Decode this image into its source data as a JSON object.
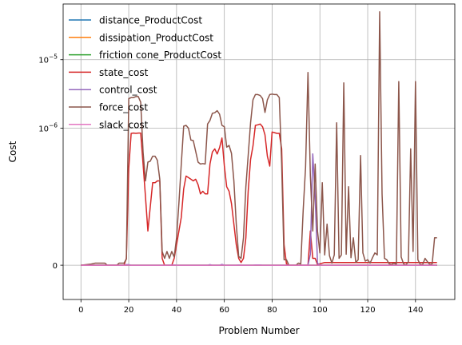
{
  "chart_data": {
    "type": "line",
    "xlabel": "Problem Number",
    "ylabel": "Cost",
    "xlim": [
      -7.45,
      156.45
    ],
    "xticks": [
      0,
      20,
      40,
      60,
      80,
      100,
      120,
      140
    ],
    "y_scale": "symlog",
    "y_linthresh": 1e-07,
    "ylim": [
      -5e-08,
      6.5e-05
    ],
    "yticks": [
      {
        "value": 0,
        "label": "0",
        "sup": ""
      },
      {
        "value": 1e-06,
        "label": "10",
        "sup": "−6"
      },
      {
        "value": 1e-05,
        "label": "10",
        "sup": "−5"
      }
    ],
    "grid": true,
    "legend_position": "top-left",
    "series": [
      {
        "name": "distance_ProductCost",
        "color": "#1f77b4",
        "y": [
          [
            0,
            0
          ],
          [
            149,
            0
          ]
        ]
      },
      {
        "name": "dissipation_ProductCost",
        "color": "#ff7f0e",
        "y": [
          [
            0,
            0
          ],
          [
            149,
            0
          ]
        ]
      },
      {
        "name": "friction cone_ProductCost",
        "color": "#2ca02c",
        "y": [
          [
            0,
            0
          ],
          [
            149,
            0
          ]
        ]
      },
      {
        "name": "state_cost",
        "color": "#d62728",
        "y": [
          [
            0,
            0
          ],
          [
            4,
            0
          ],
          [
            6,
            0
          ],
          [
            8,
            0
          ],
          [
            10,
            0
          ],
          [
            12,
            0
          ],
          [
            14,
            0
          ],
          [
            16,
            0
          ],
          [
            18,
            0
          ],
          [
            19,
            1e-08
          ],
          [
            20,
            2.6e-07
          ],
          [
            21,
            8.4e-07
          ],
          [
            22,
            8.5e-07
          ],
          [
            23,
            8.4e-07
          ],
          [
            24,
            8.5e-07
          ],
          [
            25,
            8.5e-07
          ],
          [
            26,
            3e-07
          ],
          [
            27,
            1e-07
          ],
          [
            28,
            5e-08
          ],
          [
            30,
            1.6e-07
          ],
          [
            31,
            1.6e-07
          ],
          [
            32,
            1.7e-07
          ],
          [
            33,
            1.7e-07
          ],
          [
            34,
            1e-08
          ],
          [
            35,
            0
          ],
          [
            38,
            0
          ],
          [
            39,
            1e-08
          ],
          [
            40,
            3e-08
          ],
          [
            42,
            7e-08
          ],
          [
            43,
            1.3e-07
          ],
          [
            44,
            2e-07
          ],
          [
            45,
            1.9e-07
          ],
          [
            46,
            1.8e-07
          ],
          [
            47,
            1.7e-07
          ],
          [
            48,
            1.8e-07
          ],
          [
            49,
            1.5e-07
          ],
          [
            50,
            1.1e-07
          ],
          [
            51,
            1.2e-07
          ],
          [
            52,
            1.1e-07
          ],
          [
            53,
            1.1e-07
          ],
          [
            54,
            3e-07
          ],
          [
            55,
            4.5e-07
          ],
          [
            56,
            5e-07
          ],
          [
            57,
            4.2e-07
          ],
          [
            58,
            5.2e-07
          ],
          [
            59,
            7.2e-07
          ],
          [
            60,
            2.8e-07
          ],
          [
            61,
            1.4e-07
          ],
          [
            62,
            1.2e-07
          ],
          [
            63,
            9e-08
          ],
          [
            64,
            6e-08
          ],
          [
            65,
            3e-08
          ],
          [
            66,
            1e-08
          ],
          [
            67,
            4e-09
          ],
          [
            68,
            1e-08
          ],
          [
            69,
            4e-08
          ],
          [
            70,
            1.2e-07
          ],
          [
            71,
            3.5e-07
          ],
          [
            72,
            5.5e-07
          ],
          [
            73,
            1.1e-06
          ],
          [
            74,
            1.12e-06
          ],
          [
            75,
            1.15e-06
          ],
          [
            76,
            1.05e-06
          ],
          [
            77,
            8e-07
          ],
          [
            78,
            3.9e-07
          ],
          [
            79,
            2.8e-07
          ],
          [
            80,
            8.8e-07
          ],
          [
            81,
            8.6e-07
          ],
          [
            82,
            8.4e-07
          ],
          [
            83,
            8.4e-07
          ],
          [
            84,
            5e-07
          ],
          [
            85,
            3e-08
          ],
          [
            86,
            2e-09
          ],
          [
            87,
            0
          ],
          [
            95,
            0
          ],
          [
            96,
            5e-08
          ],
          [
            97,
            1e-08
          ],
          [
            98,
            1e-08
          ],
          [
            99,
            1e-09
          ],
          [
            100,
            2e-09
          ],
          [
            102,
            4e-09
          ],
          [
            149,
            4e-09
          ]
        ]
      },
      {
        "name": "control_cost",
        "color": "#9467bd",
        "y": [
          [
            0,
            0
          ],
          [
            18,
            0
          ],
          [
            19,
            8e-10
          ],
          [
            20,
            8e-10
          ],
          [
            21,
            0
          ],
          [
            36,
            0
          ],
          [
            39,
            4e-10
          ],
          [
            40,
            0
          ],
          [
            53,
            0
          ],
          [
            54,
            8e-10
          ],
          [
            55,
            0
          ],
          [
            58,
            0
          ],
          [
            59,
            1.2e-09
          ],
          [
            60,
            0
          ],
          [
            65,
            0
          ],
          [
            66,
            5e-10
          ],
          [
            67,
            0
          ],
          [
            72,
            0
          ],
          [
            73,
            4e-10
          ],
          [
            74,
            5e-10
          ],
          [
            75,
            4e-10
          ],
          [
            76,
            0
          ],
          [
            95,
            0
          ],
          [
            96,
            1.6e-08
          ],
          [
            97,
            4.2e-07
          ],
          [
            98,
            1e-07
          ],
          [
            99,
            3e-09
          ],
          [
            100,
            2e-10
          ],
          [
            101,
            0
          ],
          [
            149,
            0
          ]
        ]
      },
      {
        "name": "force_cost",
        "color": "#8c564b",
        "y": [
          [
            0,
            0
          ],
          [
            4,
            1.5e-09
          ],
          [
            6,
            3e-09
          ],
          [
            10,
            3e-09
          ],
          [
            11,
            0
          ],
          [
            15,
            0
          ],
          [
            16,
            3e-09
          ],
          [
            18,
            3e-09
          ],
          [
            19,
            9e-09
          ],
          [
            20,
            2.7e-06
          ],
          [
            21,
            2.8e-06
          ],
          [
            22,
            2.8e-06
          ],
          [
            23,
            2.9e-06
          ],
          [
            24,
            2.9e-06
          ],
          [
            25,
            2.4e-06
          ],
          [
            26,
            4.5e-07
          ],
          [
            27,
            1.7e-07
          ],
          [
            28,
            3.2e-07
          ],
          [
            29,
            3.3e-07
          ],
          [
            30,
            3.9e-07
          ],
          [
            31,
            3.9e-07
          ],
          [
            32,
            3.4e-07
          ],
          [
            33,
            1.8e-07
          ],
          [
            34,
            2e-08
          ],
          [
            35,
            1e-08
          ],
          [
            36,
            2e-08
          ],
          [
            37,
            1e-08
          ],
          [
            38,
            2e-08
          ],
          [
            39,
            1.2e-08
          ],
          [
            40,
            4e-08
          ],
          [
            41,
            9e-08
          ],
          [
            42,
            3e-07
          ],
          [
            43,
            1.07e-06
          ],
          [
            44,
            1.1e-06
          ],
          [
            45,
            1e-06
          ],
          [
            46,
            6.7e-07
          ],
          [
            47,
            6.6e-07
          ],
          [
            48,
            4.6e-07
          ],
          [
            49,
            3.2e-07
          ],
          [
            50,
            3e-07
          ],
          [
            51,
            3.05e-07
          ],
          [
            52,
            3e-07
          ],
          [
            53,
            1.15e-06
          ],
          [
            54,
            1.3e-06
          ],
          [
            55,
            1.65e-06
          ],
          [
            56,
            1.68e-06
          ],
          [
            57,
            1.8e-06
          ],
          [
            58,
            1.6e-06
          ],
          [
            59,
            1.1e-06
          ],
          [
            60,
            1.05e-06
          ],
          [
            61,
            5.3e-07
          ],
          [
            62,
            5.6e-07
          ],
          [
            63,
            4.3e-07
          ],
          [
            64,
            1.7e-07
          ],
          [
            65,
            6e-08
          ],
          [
            66,
            1.3e-08
          ],
          [
            67,
            1e-08
          ],
          [
            68,
            4e-08
          ],
          [
            69,
            1.4e-07
          ],
          [
            70,
            4e-07
          ],
          [
            71,
            1.2e-06
          ],
          [
            72,
            2.6e-06
          ],
          [
            73,
            3.1e-06
          ],
          [
            74,
            3.1e-06
          ],
          [
            75,
            3e-06
          ],
          [
            76,
            2.7e-06
          ],
          [
            77,
            1.7e-06
          ],
          [
            78,
            2.6e-06
          ],
          [
            79,
            3.1e-06
          ],
          [
            80,
            3.15e-06
          ],
          [
            81,
            3.1e-06
          ],
          [
            82,
            3.1e-06
          ],
          [
            83,
            2.8e-06
          ],
          [
            84,
            3e-07
          ],
          [
            85,
            8e-09
          ],
          [
            86,
            8e-09
          ],
          [
            87,
            0
          ],
          [
            90,
            0
          ],
          [
            91,
            3e-09
          ],
          [
            92,
            2e-09
          ],
          [
            93,
            8e-08
          ],
          [
            94,
            2.7e-07
          ],
          [
            95,
            6.5e-06
          ],
          [
            96,
            2e-07
          ],
          [
            97,
            5e-08
          ],
          [
            98,
            3e-07
          ],
          [
            99,
            5e-08
          ],
          [
            100,
            1.8e-08
          ],
          [
            101,
            1.6e-07
          ],
          [
            102,
            1.5e-08
          ],
          [
            103,
            6e-08
          ],
          [
            104,
            1.4e-08
          ],
          [
            105,
            3e-09
          ],
          [
            106,
            1.5e-08
          ],
          [
            107,
            1.2e-06
          ],
          [
            108,
            1e-08
          ],
          [
            109,
            1.5e-08
          ],
          [
            110,
            4.6e-06
          ],
          [
            111,
            1.6e-08
          ],
          [
            112,
            1.4e-07
          ],
          [
            113,
            1.1e-08
          ],
          [
            114,
            4e-08
          ],
          [
            115,
            4e-09
          ],
          [
            116,
            8e-09
          ],
          [
            117,
            4e-07
          ],
          [
            118,
            1.8e-08
          ],
          [
            119,
            6e-09
          ],
          [
            120,
            8e-09
          ],
          [
            121,
            3e-09
          ],
          [
            122,
            1.1e-08
          ],
          [
            123,
            1.8e-08
          ],
          [
            124,
            1.5e-08
          ],
          [
            125,
            5e-05
          ],
          [
            126,
            1.1e-07
          ],
          [
            127,
            1e-08
          ],
          [
            128,
            8e-09
          ],
          [
            129,
            2e-09
          ],
          [
            130,
            1e-09
          ],
          [
            131,
            3e-09
          ],
          [
            132,
            1e-09
          ],
          [
            133,
            4.8e-06
          ],
          [
            134,
            1.2e-08
          ],
          [
            135,
            2e-09
          ],
          [
            136,
            5e-10
          ],
          [
            137,
            5e-09
          ],
          [
            138,
            5e-07
          ],
          [
            139,
            2e-08
          ],
          [
            140,
            4.8e-06
          ],
          [
            141,
            8e-09
          ],
          [
            142,
            1e-09
          ],
          [
            143,
            1e-09
          ],
          [
            144,
            1e-08
          ],
          [
            145,
            5e-09
          ],
          [
            146,
            1e-09
          ],
          [
            147,
            2e-09
          ],
          [
            148,
            4e-08
          ],
          [
            149,
            4e-08
          ]
        ]
      },
      {
        "name": "slack_cost",
        "color": "#e377c2",
        "y": [
          [
            0,
            0
          ],
          [
            149,
            0
          ]
        ]
      }
    ]
  }
}
